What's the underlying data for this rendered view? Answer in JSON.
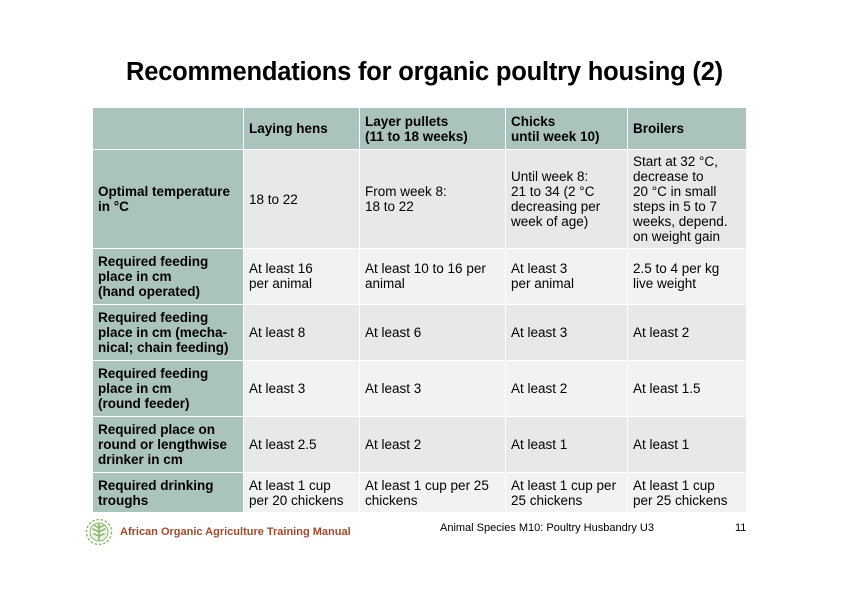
{
  "slide": {
    "title": "Recommendations for organic poultry housing (2)"
  },
  "table": {
    "headers": [
      "",
      "Laying hens",
      "Layer pullets\n(11 to 18 weeks)",
      "Chicks\nuntil week 10)",
      "Broilers"
    ],
    "rows": [
      {
        "label": "Optimal temperature\nin °C",
        "cells": [
          "18 to 22",
          "From week 8:\n18 to 22",
          "Until week 8:\n21 to 34 (2 °C\ndecreasing per\nweek of age)",
          "Start at 32 °C,\ndecrease to\n20 °C in small\nsteps in 5 to 7\nweeks, depend.\non weight gain"
        ]
      },
      {
        "label": "Required feeding\nplace in cm\n(hand operated)",
        "cells": [
          "At least 16\nper animal",
          "At least 10 to 16 per\nanimal",
          "At least 3\nper animal",
          "2.5 to 4 per kg\nlive weight"
        ]
      },
      {
        "label": "Required feeding\nplace in cm (mecha-\nnical; chain feeding)",
        "cells": [
          "At least 8",
          "At least 6",
          "At least 3",
          "At least 2"
        ]
      },
      {
        "label": "Required feeding\nplace in cm\n(round feeder)",
        "cells": [
          "At least 3",
          "At least 3",
          "At least 2",
          "At least 1.5"
        ]
      },
      {
        "label": "Required place on\nround or lengthwise\ndrinker in cm",
        "cells": [
          "At least 2.5",
          "At least 2",
          "At least 1",
          "At least 1"
        ]
      },
      {
        "label": "Required drinking\ntroughs",
        "cells": [
          "At least 1 cup\nper 20 chickens",
          "At least 1 cup per 25\nchickens",
          "At least 1 cup per\n25 chickens",
          "At least 1 cup\nper 25 chickens"
        ]
      }
    ]
  },
  "footer": {
    "manual": "African Organic Agriculture Training Manual",
    "course": "Animal Species M10: Poultry Husbandry U3",
    "page": "11"
  },
  "colors": {
    "header_bg": "#abc3bd",
    "row_odd": "#e6e9e8",
    "row_even": "#f1f3f2",
    "manual_text": "#9c4b2f",
    "logo": "#8fb872"
  },
  "icons": {
    "footer_logo": "organic-leaf-logo-icon"
  }
}
